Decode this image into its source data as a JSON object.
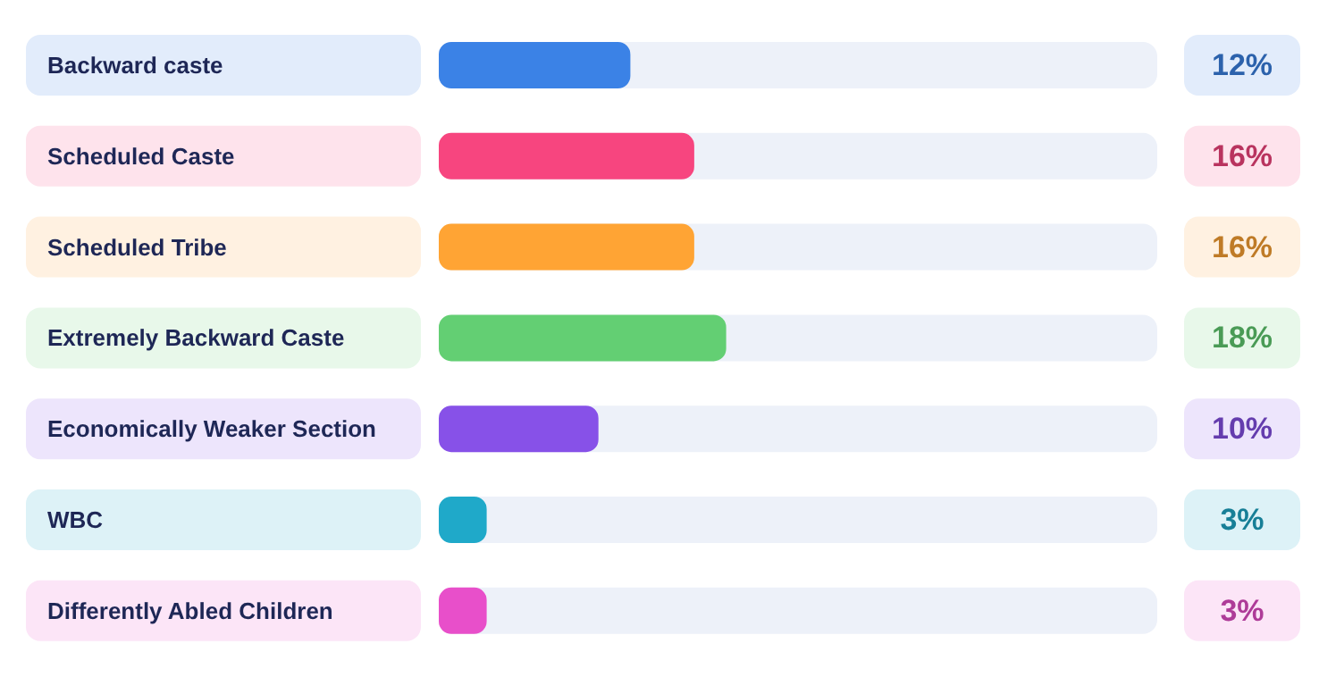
{
  "chart_data": {
    "type": "bar",
    "orientation": "horizontal",
    "categories": [
      "Backward caste",
      "Scheduled Caste",
      "Scheduled Tribe",
      "Extremely Backward Caste",
      "Economically Weaker Section",
      "WBC",
      "Differently Abled Children"
    ],
    "values": [
      12,
      16,
      16,
      18,
      10,
      3,
      3
    ],
    "value_labels": [
      "12%",
      "16%",
      "16%",
      "18%",
      "10%",
      "3%",
      "3%"
    ],
    "colors": [
      "#3b82e6",
      "#f7457f",
      "#ffa434",
      "#63cf73",
      "#8751e8",
      "#1fa9c9",
      "#e84fca"
    ],
    "xlim": [
      0,
      45
    ],
    "grid": false
  }
}
